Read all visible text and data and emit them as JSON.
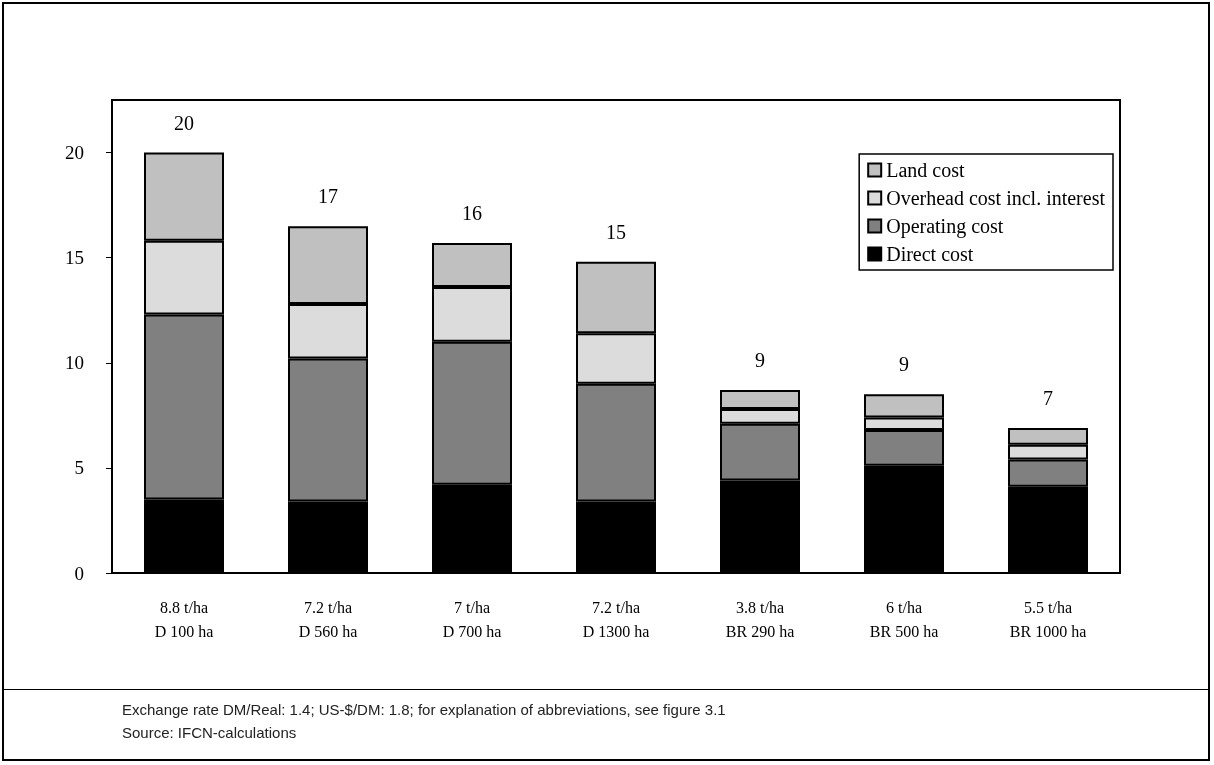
{
  "chart_data": {
    "type": "bar",
    "stacked": true,
    "categories": [
      "8.8 t/ha\nD 100 ha",
      "7.2 t/ha\nD 560 ha",
      "7 t/ha\nD 700 ha",
      "7.2 t/ha\nD 1300 ha",
      "3.8 t/ha\nBR 290 ha",
      "6 t/ha\nBR 500 ha",
      "5.5 t/ha\nBR 1000 ha"
    ],
    "series": [
      {
        "name": "Direct cost",
        "color": "#000000",
        "values": [
          3.5,
          3.4,
          4.2,
          3.4,
          4.4,
          5.1,
          4.1
        ]
      },
      {
        "name": "Operating cost",
        "color": "#808080",
        "values": [
          8.8,
          6.8,
          6.8,
          5.6,
          2.7,
          1.7,
          1.3
        ]
      },
      {
        "name": "Overhead cost incl. interest",
        "color": "#dcdcdc",
        "values": [
          3.5,
          2.6,
          2.6,
          2.4,
          0.7,
          0.6,
          0.7
        ]
      },
      {
        "name": "Land cost",
        "color": "#c0c0c0",
        "values": [
          4.2,
          3.7,
          2.1,
          3.4,
          0.9,
          1.1,
          0.8
        ]
      }
    ],
    "totals": [
      "20",
      "17",
      "16",
      "15",
      "9",
      "9",
      "7"
    ],
    "ylim": [
      0,
      22.5
    ],
    "yticks": [
      0,
      5,
      10,
      15,
      20
    ],
    "grid": false,
    "legend": "top right",
    "annotations": [
      "Exchange rate DM/Real: 1.4; US-$/DM: 1.8; for explanation of abbreviations, see figure 3.1",
      "Source: IFCN-calculations"
    ]
  }
}
